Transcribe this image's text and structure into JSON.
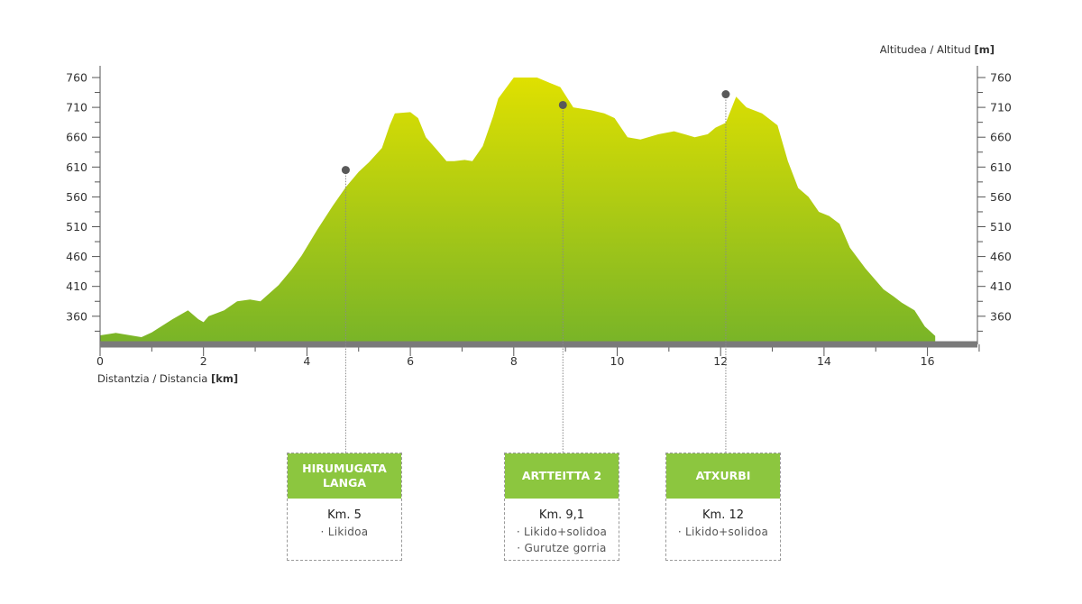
{
  "colors": {
    "fill_top": "#dfe000",
    "fill_bottom": "#78b428",
    "baseline": "#7a7a7a",
    "marker": "#595959",
    "card_header": "#8cc63f"
  },
  "axes": {
    "x_label_prefix": "Distantzia / Distancia",
    "x_label_unit": "[km]",
    "y_label_prefix": "Altitudea / Altitud",
    "y_label_unit": "[m]"
  },
  "chart_data": {
    "type": "area",
    "xlabel": "Distantzia / Distancia [km]",
    "ylabel": "Altitudea / Altitud [m]",
    "xlim": [
      0,
      17
    ],
    "ylim": [
      310,
      775
    ],
    "x_ticks": [
      0,
      2,
      4,
      6,
      8,
      10,
      12,
      14,
      16
    ],
    "y_ticks": [
      360,
      410,
      460,
      510,
      560,
      610,
      660,
      710,
      760
    ],
    "grid": false,
    "x": [
      0,
      0.3,
      0.8,
      1.0,
      1.4,
      1.7,
      1.9,
      2.0,
      2.1,
      2.4,
      2.65,
      2.9,
      3.1,
      3.45,
      3.7,
      3.9,
      4.2,
      4.5,
      4.75,
      5.0,
      5.2,
      5.45,
      5.6,
      5.7,
      6.0,
      6.15,
      6.3,
      6.5,
      6.7,
      6.85,
      7.05,
      7.2,
      7.4,
      7.6,
      7.7,
      8.0,
      8.45,
      8.7,
      8.9,
      9.15,
      9.5,
      9.75,
      9.95,
      10.2,
      10.45,
      10.8,
      11.1,
      11.5,
      11.75,
      11.9,
      12.1,
      12.3,
      12.5,
      12.8,
      13.1,
      13.3,
      13.5,
      13.7,
      13.9,
      14.1,
      14.3,
      14.5,
      14.8,
      15.15,
      15.35,
      15.5,
      15.75,
      15.95,
      16.15
    ],
    "y": [
      328,
      332,
      325,
      333,
      355,
      370,
      355,
      350,
      360,
      370,
      385,
      388,
      385,
      412,
      438,
      462,
      505,
      545,
      576,
      602,
      618,
      642,
      680,
      700,
      702,
      692,
      660,
      640,
      620,
      620,
      622,
      620,
      645,
      695,
      725,
      760,
      760,
      751,
      744,
      710,
      705,
      700,
      692,
      660,
      656,
      665,
      670,
      660,
      665,
      676,
      684,
      728,
      710,
      700,
      680,
      620,
      575,
      560,
      535,
      528,
      515,
      475,
      440,
      405,
      393,
      383,
      370,
      343,
      327
    ],
    "points": [
      {
        "name": "HIRUMUGATA LANGA",
        "x": 4.75,
        "y": 605
      },
      {
        "name": "ARTTEITTA 2",
        "x": 8.95,
        "y": 714
      },
      {
        "name": "ATXURBI",
        "x": 12.1,
        "y": 732
      }
    ]
  },
  "waypoints": [
    {
      "title": "HIRUMUGATA\nLANGA",
      "km": "Km. 5",
      "notes": [
        "· Likidoa"
      ]
    },
    {
      "title": "ARTTEITTA 2",
      "km": "Km. 9,1",
      "notes": [
        "· Likido+solidoa",
        "· Gurutze gorria"
      ]
    },
    {
      "title": "ATXURBI",
      "km": "Km. 12",
      "notes": [
        "· Likido+solidoa"
      ]
    }
  ]
}
